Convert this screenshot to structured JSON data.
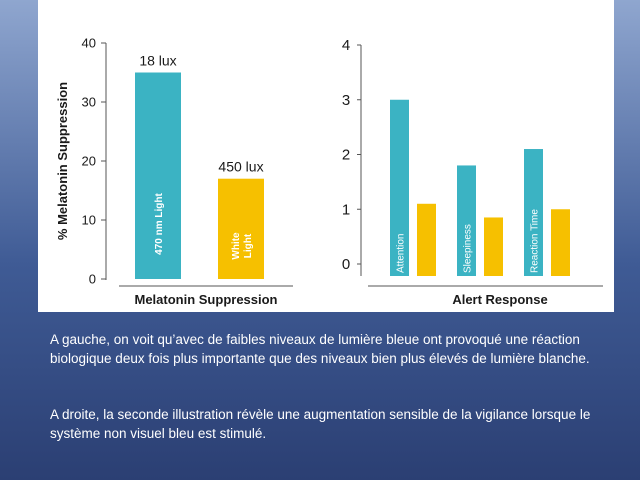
{
  "colors": {
    "blue": "#3bb3c3",
    "yellow": "#f6c000",
    "axis": "#555555"
  },
  "chart_data": [
    {
      "type": "bar",
      "title": "Melatonin Suppression",
      "ylabel": "% Melatonin Suppression",
      "ylim": [
        0,
        40
      ],
      "yticks": [
        "0",
        "10",
        "20",
        "30",
        "40"
      ],
      "bars": [
        {
          "label": "470 nm Light",
          "value": 35,
          "annotation": "18 lux",
          "color": "#3bb3c3"
        },
        {
          "label": "White Light",
          "value": 17,
          "annotation": "450 lux",
          "color": "#f6c000"
        }
      ]
    },
    {
      "type": "bar",
      "title": "Alert Response",
      "ylim": [
        0,
        4
      ],
      "yticks": [
        "0",
        "1",
        "2",
        "3",
        "4"
      ],
      "categories": [
        "Attention",
        "Sleepiness",
        "Reaction Time"
      ],
      "series": [
        {
          "values": [
            3.0,
            1.8,
            2.1
          ],
          "color": "#3bb3c3"
        },
        {
          "values": [
            1.1,
            0.85,
            1.0
          ],
          "color": "#f6c000"
        }
      ]
    }
  ],
  "caption": {
    "p1": "A gauche, on voit qu’avec de faibles niveaux de lumière bleue ont provoqué une réaction biologique deux fois plus importante que des niveaux bien plus élevés de lumière blanche.",
    "p2": "A droite, la seconde illustration révèle une augmentation sensible de la vigilance lorsque le système non visuel bleu est stimulé."
  }
}
